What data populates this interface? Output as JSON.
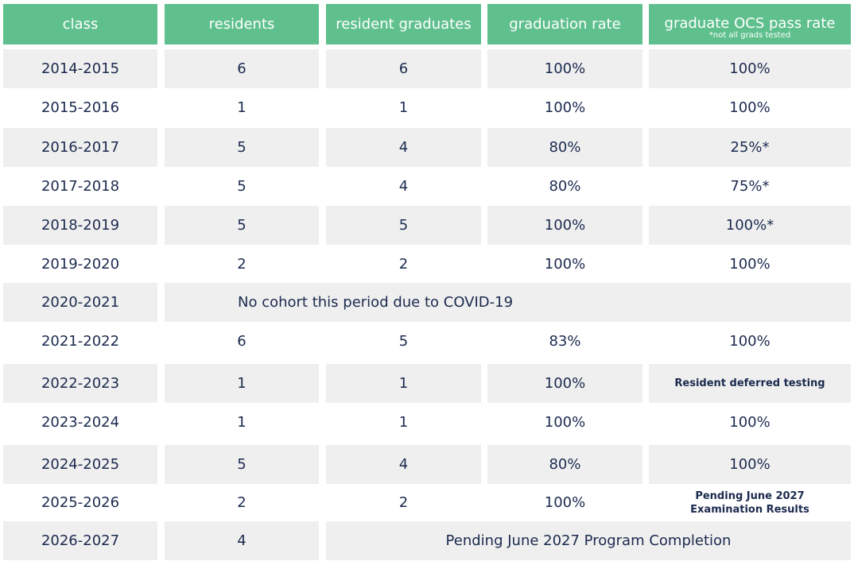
{
  "headers": {
    "class": "class",
    "residents": "residents",
    "graduates": "resident graduates",
    "rate": "graduation rate",
    "ocs": "graduate OCS pass rate",
    "ocs_note": "*not all grads tested"
  },
  "rows": [
    {
      "class": "2014-2015",
      "residents": "6",
      "graduates": "6",
      "rate": "100%",
      "ocs": "100%"
    },
    {
      "class": "2015-2016",
      "residents": "1",
      "graduates": "1",
      "rate": "100%",
      "ocs": "100%"
    },
    {
      "class": "2016-2017",
      "residents": "5",
      "graduates": "4",
      "rate": "80%",
      "ocs": "25%*"
    },
    {
      "class": "2017-2018",
      "residents": "5",
      "graduates": "4",
      "rate": "80%",
      "ocs": "75%*"
    },
    {
      "class": "2018-2019",
      "residents": "5",
      "graduates": "5",
      "rate": "100%",
      "ocs": "100%*"
    },
    {
      "class": "2019-2020",
      "residents": "2",
      "graduates": "2",
      "rate": "100%",
      "ocs": "100%"
    },
    {
      "class": "2020-2021",
      "note": "No cohort this period due to COVID-19"
    },
    {
      "class": "2021-2022",
      "residents": "6",
      "graduates": "5",
      "rate": "83%",
      "ocs": "100%"
    },
    {
      "class": "2022-2023",
      "residents": "1",
      "graduates": "1",
      "rate": "100%",
      "ocs": "Resident deferred testing"
    },
    {
      "class": "2023-2024",
      "residents": "1",
      "graduates": "1",
      "rate": "100%",
      "ocs": "100%"
    },
    {
      "class": "2024-2025",
      "residents": "5",
      "graduates": "4",
      "rate": "80%",
      "ocs": "100%"
    },
    {
      "class": "2025-2026",
      "residents": "2",
      "graduates": "2",
      "rate": "100%",
      "ocs_line1": "Pending June 2027",
      "ocs_line2": "Examination Results"
    },
    {
      "class": "2026-2027",
      "residents": "4",
      "note": "Pending June 2027 Program Completion"
    }
  ]
}
